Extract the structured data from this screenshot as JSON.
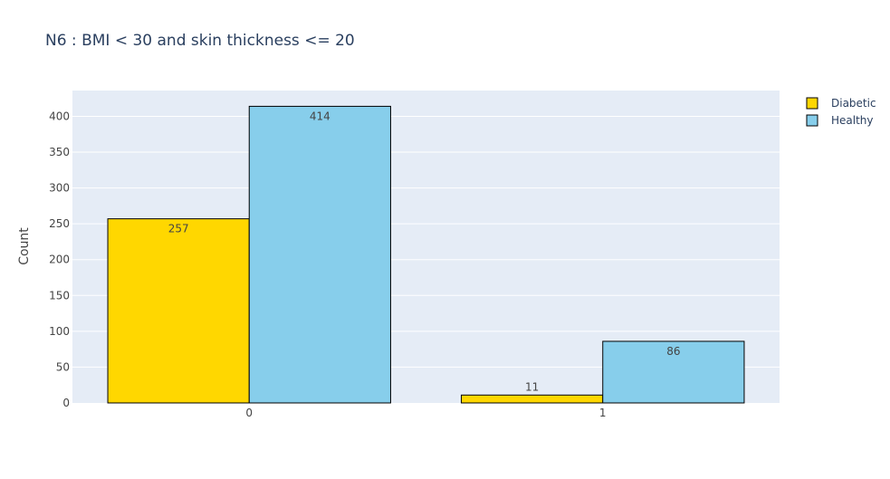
{
  "chart_data": {
    "type": "bar",
    "title": "N6 : BMI < 30 and skin thickness <= 20",
    "xlabel": "",
    "ylabel": "Count",
    "categories": [
      "0",
      "1"
    ],
    "series": [
      {
        "name": "Diabetic",
        "values": [
          257,
          11
        ],
        "color": "#FFD700"
      },
      {
        "name": "Healthy",
        "values": [
          414,
          86
        ],
        "color": "#87CEEB"
      }
    ],
    "ylim": [
      0,
      436
    ],
    "yticks": [
      0,
      50,
      100,
      150,
      200,
      250,
      300,
      350,
      400
    ],
    "grid": true,
    "legend_position": "top-right",
    "plot_background": "#E5ECF6",
    "bar_outline": "#000000"
  }
}
